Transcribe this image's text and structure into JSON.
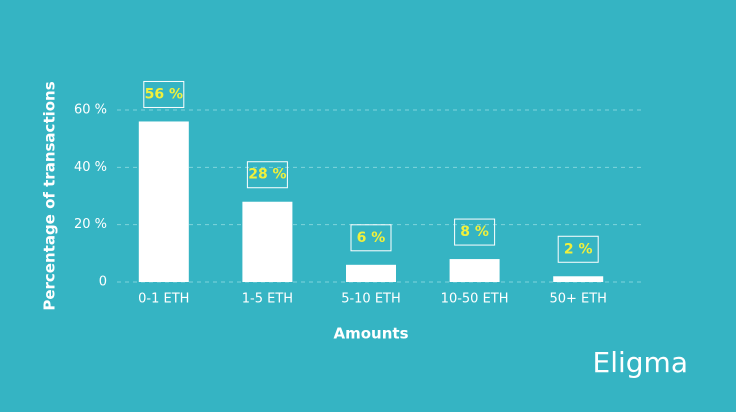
{
  "chart_data": {
    "type": "bar",
    "y_label": "Percentage of transactions",
    "x_label": "Amounts",
    "categories": [
      "0-1 ETH",
      "1-5 ETH",
      "5-10 ETH",
      "10-50 ETH",
      "50+ ETH"
    ],
    "values": [
      56,
      28,
      6,
      8,
      2
    ],
    "value_labels": [
      "56 %",
      "28 %",
      "6 %",
      "8 %",
      "2 %"
    ],
    "color": "#ffffff",
    "label_color": "#f0f03c",
    "ylim": [
      0,
      60
    ],
    "yticks": [
      0,
      {
        "value": 20,
        "label": "20 %"
      },
      {
        "value": 40,
        "label": "40 %"
      },
      {
        "value": 60,
        "label": "60 %"
      }
    ],
    "grid": true
  },
  "logo": "Eligma"
}
